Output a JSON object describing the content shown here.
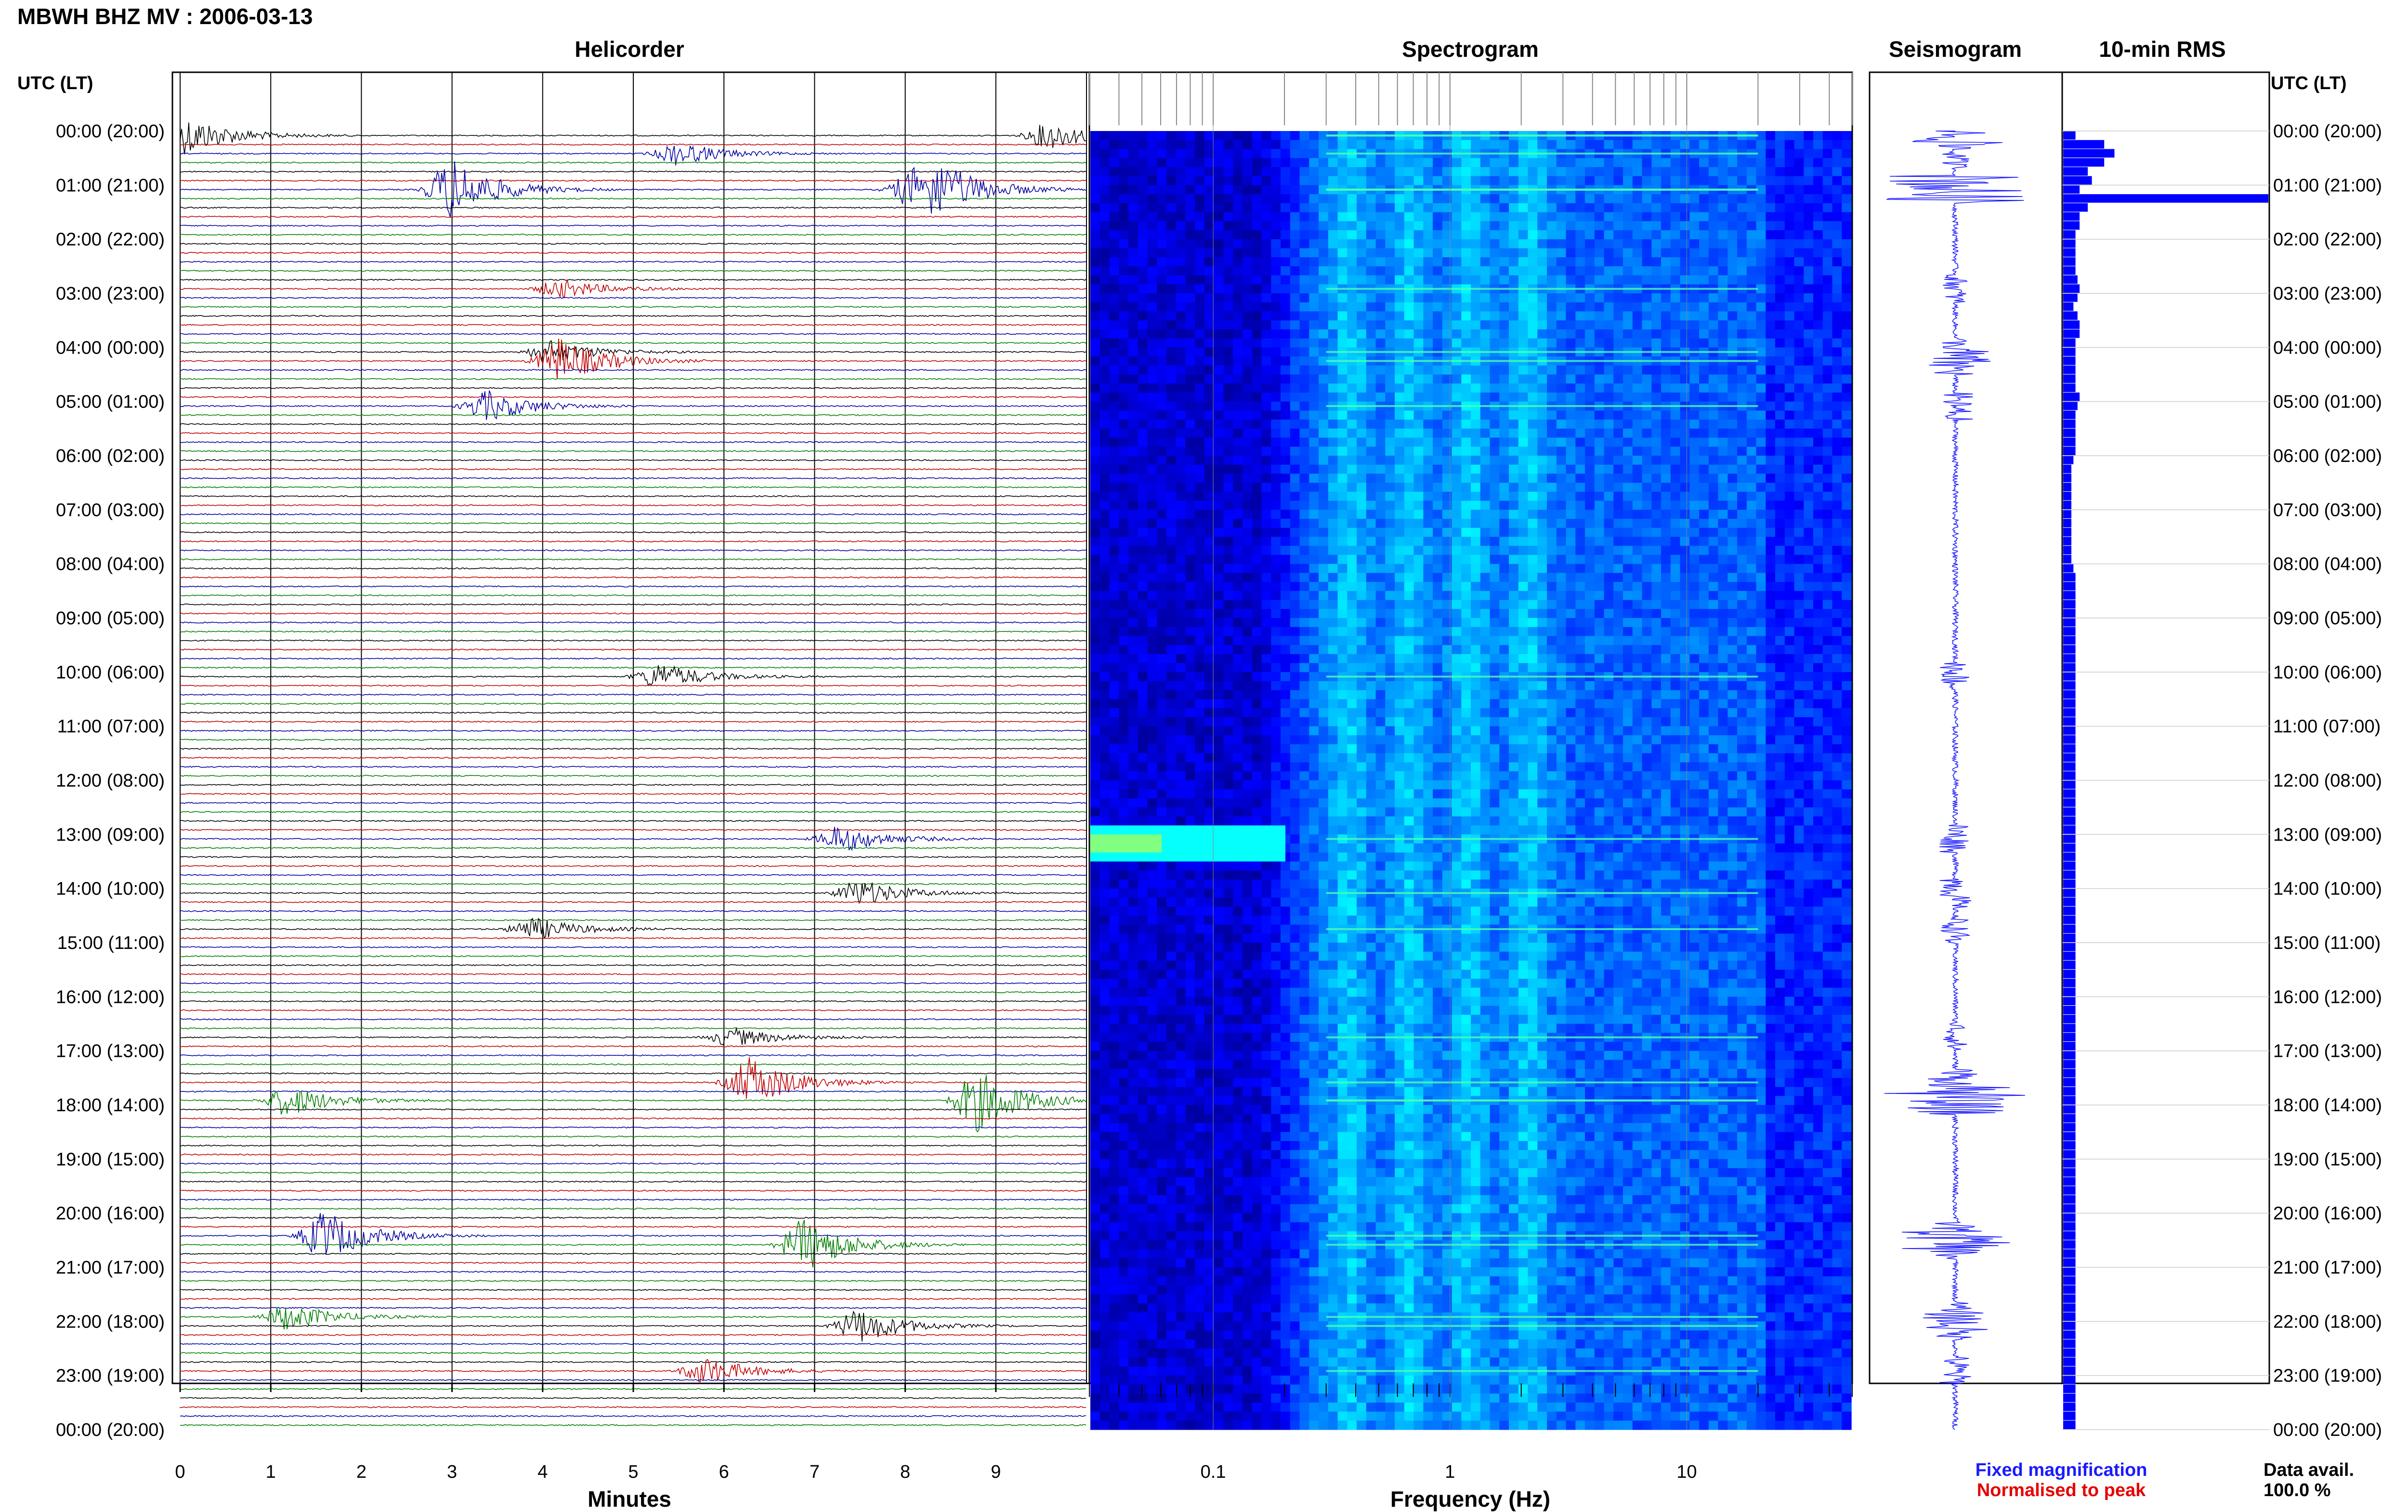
{
  "header": {
    "station_title": "MBWH BHZ MV : 2006-03-13"
  },
  "panels": {
    "helicorder": "Helicorder",
    "spectrogram": "Spectrogram",
    "seismogram": "Seismogram",
    "rms": "10-min RMS"
  },
  "time_axis": {
    "title_left": "UTC (LT)",
    "title_right": "UTC (LT)",
    "labels": [
      "00:00 (20:00)",
      "01:00 (21:00)",
      "02:00 (22:00)",
      "03:00 (23:00)",
      "04:00 (00:00)",
      "05:00 (01:00)",
      "06:00 (02:00)",
      "07:00 (03:00)",
      "08:00 (04:00)",
      "09:00 (05:00)",
      "10:00 (06:00)",
      "11:00 (07:00)",
      "12:00 (08:00)",
      "13:00 (09:00)",
      "14:00 (10:00)",
      "15:00 (11:00)",
      "16:00 (12:00)",
      "17:00 (13:00)",
      "18:00 (14:00)",
      "19:00 (15:00)",
      "20:00 (16:00)",
      "21:00 (17:00)",
      "22:00 (18:00)",
      "23:00 (19:00)",
      "00:00 (20:00)"
    ]
  },
  "helicorder_axis": {
    "xlabel": "Minutes",
    "ticks": [
      "0",
      "1",
      "2",
      "3",
      "4",
      "5",
      "6",
      "7",
      "8",
      "9"
    ]
  },
  "spectrogram_axis": {
    "xlabel": "Frequency (Hz)",
    "ticks": [
      "0.1",
      "1",
      "10"
    ]
  },
  "legend": {
    "fixed": "Fixed magnification",
    "normalised": "Normalised to peak",
    "fixed_color": "#1a1aff",
    "normalised_color": "#e60000"
  },
  "availability": {
    "label": "Data avail.",
    "value": "100.0 %"
  },
  "colors": {
    "trace_cycle": [
      "#000000",
      "#c00000",
      "#0000a0",
      "#008000"
    ],
    "spectrogram_base": "#000080",
    "rms_bar": "#0000ff"
  },
  "chart_data": {
    "type": "helicorder",
    "helicorder": {
      "lines": 144,
      "minutes_per_line": 10,
      "xlim": [
        0,
        10
      ],
      "events": [
        {
          "line": 0,
          "minute": 0.1,
          "amp": 1.0
        },
        {
          "line": 0,
          "minute": 9.6,
          "amp": 0.7
        },
        {
          "line": 2,
          "minute": 5.5,
          "amp": 0.6
        },
        {
          "line": 6,
          "minute": 3.0,
          "amp": 1.6
        },
        {
          "line": 6,
          "minute": 8.1,
          "amp": 1.0
        },
        {
          "line": 6,
          "minute": 8.4,
          "amp": 0.9
        },
        {
          "line": 17,
          "minute": 4.2,
          "amp": 0.5
        },
        {
          "line": 24,
          "minute": 4.1,
          "amp": 0.6
        },
        {
          "line": 25,
          "minute": 4.2,
          "amp": 1.2
        },
        {
          "line": 30,
          "minute": 3.4,
          "amp": 0.8
        },
        {
          "line": 60,
          "minute": 5.3,
          "amp": 0.7
        },
        {
          "line": 78,
          "minute": 7.3,
          "amp": 0.7
        },
        {
          "line": 84,
          "minute": 7.5,
          "amp": 0.7
        },
        {
          "line": 88,
          "minute": 3.9,
          "amp": 0.6
        },
        {
          "line": 100,
          "minute": 6.1,
          "amp": 0.5
        },
        {
          "line": 105,
          "minute": 6.3,
          "amp": 1.3
        },
        {
          "line": 107,
          "minute": 8.8,
          "amp": 1.6
        },
        {
          "line": 107,
          "minute": 1.2,
          "amp": 0.8
        },
        {
          "line": 122,
          "minute": 1.6,
          "amp": 1.3
        },
        {
          "line": 123,
          "minute": 6.9,
          "amp": 1.4
        },
        {
          "line": 131,
          "minute": 1.2,
          "amp": 0.7
        },
        {
          "line": 132,
          "minute": 7.5,
          "amp": 0.9
        },
        {
          "line": 137,
          "minute": 5.8,
          "amp": 0.7
        }
      ]
    },
    "spectrogram": {
      "xscale": "log",
      "xlim": [
        0.03,
        50
      ],
      "ticks": [
        0.1,
        1,
        10
      ],
      "colormap": "jet"
    },
    "rms": {
      "bins": 144,
      "values": [
        0.06,
        0.2,
        0.25,
        0.2,
        0.12,
        0.14,
        0.08,
        1.0,
        0.12,
        0.08,
        0.08,
        0.06,
        0.06,
        0.06,
        0.06,
        0.06,
        0.07,
        0.08,
        0.07,
        0.05,
        0.07,
        0.08,
        0.08,
        0.06,
        0.06,
        0.06,
        0.06,
        0.06,
        0.06,
        0.08,
        0.07,
        0.06,
        0.06,
        0.06,
        0.06,
        0.06,
        0.05,
        0.04,
        0.04,
        0.04,
        0.04,
        0.04,
        0.04,
        0.04,
        0.04,
        0.04,
        0.04,
        0.04,
        0.05,
        0.06,
        0.06,
        0.06,
        0.06,
        0.06,
        0.06,
        0.06,
        0.06,
        0.06,
        0.06,
        0.06,
        0.06,
        0.06,
        0.06,
        0.06,
        0.06,
        0.06,
        0.06,
        0.06,
        0.06,
        0.06,
        0.06,
        0.06,
        0.06,
        0.06,
        0.06,
        0.06,
        0.06,
        0.06,
        0.06,
        0.06,
        0.06,
        0.06,
        0.06,
        0.06,
        0.06,
        0.06,
        0.06,
        0.06,
        0.06,
        0.06,
        0.06,
        0.06,
        0.06,
        0.06,
        0.06,
        0.06,
        0.06,
        0.06,
        0.06,
        0.06,
        0.06,
        0.06,
        0.06,
        0.06,
        0.06,
        0.06,
        0.06,
        0.06,
        0.06,
        0.06,
        0.06,
        0.06,
        0.06,
        0.06,
        0.06,
        0.06,
        0.06,
        0.06,
        0.06,
        0.06,
        0.06,
        0.06,
        0.06,
        0.06,
        0.06,
        0.06,
        0.06,
        0.06,
        0.06,
        0.06,
        0.06,
        0.06,
        0.06,
        0.06,
        0.06,
        0.06,
        0.06,
        0.06,
        0.06,
        0.06,
        0.06,
        0.06,
        0.06,
        0.06
      ],
      "xlim": [
        0,
        1
      ]
    }
  }
}
